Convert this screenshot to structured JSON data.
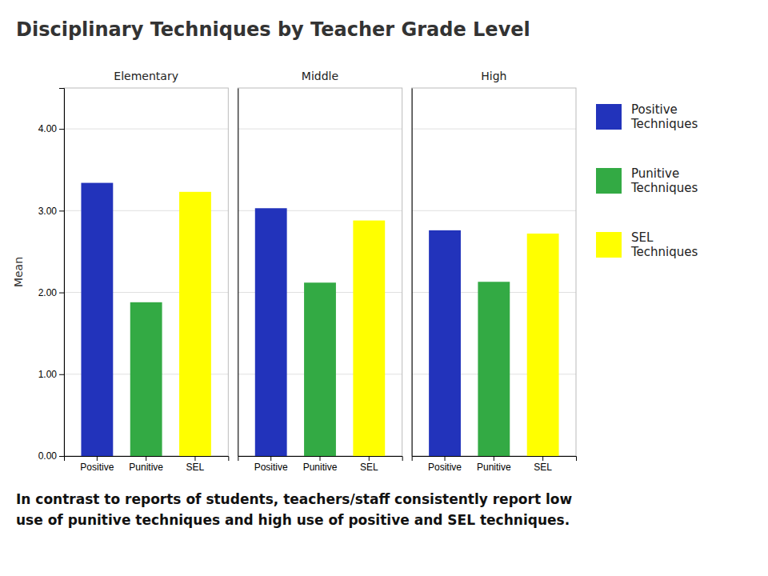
{
  "chart_data": {
    "type": "bar",
    "title": "Disciplinary Techniques by Teacher Grade Level",
    "ylabel": "Mean",
    "categories": [
      "Elementary",
      "Middle",
      "High"
    ],
    "subcategories": [
      "Positive",
      "Punitive",
      "SEL"
    ],
    "series": [
      {
        "name": "Positive\nTechniques",
        "color": "#2233BB",
        "values": [
          3.34,
          3.03,
          2.76
        ]
      },
      {
        "name": "Punitive\nTechniques",
        "color": "#33AA44",
        "values": [
          1.88,
          2.12,
          2.13
        ]
      },
      {
        "name": "SEL\nTechniques",
        "color": "#FFFF00",
        "values": [
          3.23,
          2.88,
          2.72
        ]
      }
    ],
    "ylim": [
      0,
      4.5
    ],
    "yticks": [
      {
        "value": 0.0,
        "label": "0.00"
      },
      {
        "value": 1.0,
        "label": "1.00"
      },
      {
        "value": 2.0,
        "label": "2.00"
      },
      {
        "value": 3.0,
        "label": "3.00"
      },
      {
        "value": 4.0,
        "label": "4.00"
      }
    ],
    "grid": true,
    "legend": "right",
    "annotations": [
      "In contrast to reports of students, teachers/staff consistently report low\nuse of punitive techniques and high use of positive and SEL techniques."
    ]
  }
}
